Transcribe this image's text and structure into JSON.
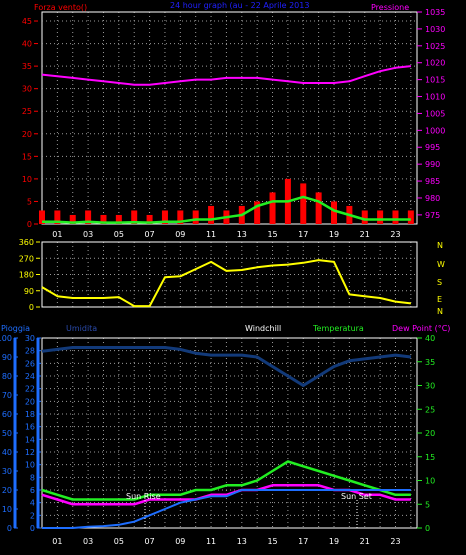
{
  "colors": {
    "background": "#000000",
    "plot_border": "#ffffff",
    "grid": "#9a9a9a",
    "wind_gust": "#ff0000",
    "wind_avg": "#22ee22",
    "pressure": "#ff00ff",
    "direction": "#ffff00",
    "humidity_rain_axis": "#1e6eff",
    "humidity_line": "#123a7a",
    "temperature": "#22ee22",
    "dew_point": "#ff00ff",
    "windchill": "#ffffff",
    "rain": "#1e6eff",
    "title": "#2020ff"
  },
  "header": {
    "left": "Forza vento()",
    "center": "24 hour graph (au - 22 Aprile 2013",
    "right": "Pressione"
  },
  "direction_letters": [
    "N",
    "W",
    "S",
    "E",
    "N"
  ],
  "panel3_labels": {
    "rain": "Pioggia",
    "humidity": "Umidita",
    "windchill": "Windchill",
    "temperature": "Temperatura",
    "dew_point": "Dew Point (°C)"
  },
  "annotations": {
    "sunrise": "Sun Rise",
    "sunset": "Sun Set"
  },
  "chart_data": [
    {
      "type": "line",
      "x": [
        0,
        1,
        2,
        3,
        4,
        5,
        6,
        7,
        8,
        9,
        10,
        11,
        12,
        13,
        14,
        15,
        16,
        17,
        18,
        19,
        20,
        21,
        22,
        23,
        24
      ],
      "x_tick_labels": [
        "01",
        "03",
        "05",
        "07",
        "09",
        "11",
        "13",
        "15",
        "17",
        "19",
        "21",
        "23"
      ],
      "xlim": [
        0,
        24.4
      ],
      "yleft": {
        "label": "Forza vento()",
        "range": [
          0,
          47
        ],
        "ticks": [
          0,
          5,
          10,
          15,
          20,
          25,
          30,
          35,
          40,
          45
        ]
      },
      "yright": {
        "label": "Pressione",
        "range": [
          972.3,
          1035
        ],
        "ticks": [
          975,
          980,
          985,
          990,
          995,
          1000,
          1005,
          1010,
          1015,
          1020,
          1025,
          1030,
          1035
        ]
      },
      "series": [
        {
          "axis": "left",
          "values": [
            3,
            3,
            2,
            3,
            2,
            2,
            3,
            2,
            3,
            3,
            3,
            4,
            3,
            4,
            5,
            7,
            10,
            9,
            7,
            5,
            4,
            3,
            3,
            3,
            3
          ]
        },
        {
          "axis": "left",
          "values": [
            0.5,
            0.5,
            0.3,
            0.5,
            0.3,
            0.3,
            0.4,
            0.3,
            0.5,
            0.5,
            1,
            1,
            1.5,
            2,
            4,
            5,
            5,
            6,
            5,
            3,
            2,
            1,
            1,
            1,
            1
          ]
        },
        {
          "axis": "right",
          "values": [
            1016.5,
            1016,
            1015.5,
            1015,
            1014.5,
            1014,
            1013.5,
            1013.5,
            1014,
            1014.5,
            1015,
            1015,
            1015.5,
            1015.5,
            1015.5,
            1015,
            1014.5,
            1014,
            1014,
            1014,
            1014.5,
            1016,
            1017.5,
            1018.5,
            1019
          ]
        }
      ]
    },
    {
      "type": "line",
      "x": [
        0,
        1,
        2,
        3,
        4,
        5,
        6,
        7,
        8,
        9,
        10,
        11,
        12,
        13,
        14,
        15,
        16,
        17,
        18,
        19,
        20,
        21,
        22,
        23,
        24
      ],
      "xlim": [
        0,
        24.4
      ],
      "yleft": {
        "range": [
          0,
          360
        ],
        "ticks": [
          0,
          90,
          180,
          270,
          360
        ]
      },
      "series": [
        {
          "axis": "left",
          "values": [
            110,
            60,
            50,
            50,
            50,
            55,
            5,
            5,
            165,
            170,
            210,
            250,
            200,
            205,
            220,
            230,
            235,
            245,
            260,
            250,
            70,
            60,
            50,
            30,
            20
          ]
        }
      ]
    },
    {
      "type": "line",
      "x": [
        0,
        1,
        2,
        3,
        4,
        5,
        6,
        7,
        8,
        9,
        10,
        11,
        12,
        13,
        14,
        15,
        16,
        17,
        18,
        19,
        20,
        21,
        22,
        23,
        24
      ],
      "xlim": [
        0,
        24.4
      ],
      "yleft": {
        "label": "Pioggia",
        "range": [
          0,
          30
        ],
        "ticks": [
          0,
          2,
          4,
          6,
          8,
          10,
          12,
          14,
          16,
          18,
          20,
          22,
          24,
          26,
          28,
          30
        ]
      },
      "yleft_outer": {
        "label": "Umidita",
        "range": [
          0,
          100
        ],
        "ticks": [
          0,
          10,
          20,
          30,
          40,
          50,
          60,
          70,
          80,
          90,
          100
        ]
      },
      "yright": {
        "label": "Temperatura",
        "range": [
          0,
          40
        ],
        "ticks": [
          0,
          5,
          10,
          15,
          20,
          25,
          30,
          35,
          40
        ]
      },
      "series": [
        {
          "axis": "left_outer",
          "values": [
            93,
            94,
            95,
            95,
            95,
            95,
            95,
            95,
            95,
            94,
            92,
            91,
            91,
            91,
            90,
            85,
            80,
            75,
            80,
            85,
            88,
            89,
            90,
            91,
            90
          ]
        },
        {
          "axis": "right",
          "values": [
            8,
            7,
            6,
            6,
            6,
            6,
            6,
            7,
            7,
            7,
            8,
            8,
            9,
            9,
            10,
            12,
            14,
            13,
            12,
            11,
            10,
            9,
            8,
            7,
            7
          ]
        },
        {
          "axis": "right",
          "values": [
            7,
            6,
            5,
            5,
            5,
            5,
            5,
            6,
            6,
            6,
            6,
            7,
            7,
            8,
            8,
            9,
            9,
            9,
            9,
            8,
            8,
            7,
            7,
            6,
            6
          ]
        },
        {
          "axis": "left",
          "values": [
            0,
            0,
            0,
            0.2,
            0.3,
            0.5,
            1,
            2,
            3,
            4,
            4.5,
            5,
            5,
            6,
            6,
            6,
            6,
            6,
            6,
            6,
            6,
            6,
            6,
            6,
            6
          ]
        }
      ]
    }
  ]
}
